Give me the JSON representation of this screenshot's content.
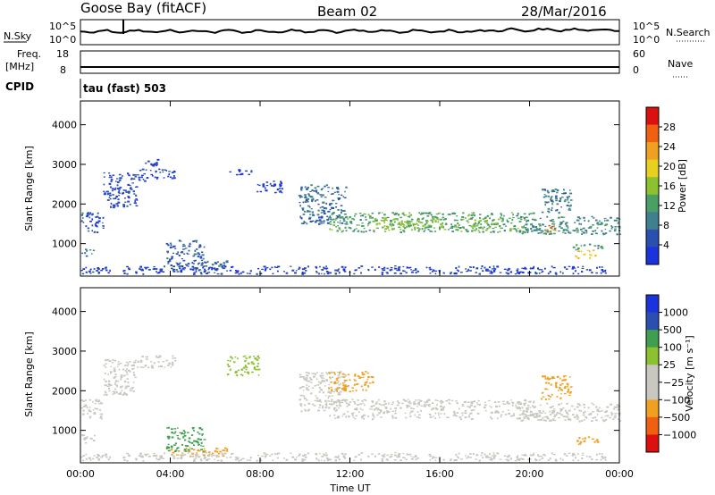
{
  "header": {
    "station": "Goose Bay (fitACF)",
    "beam": "Beam 02",
    "date": "28/Mar/2016"
  },
  "strip_noise": {
    "left_label": "N.Sky",
    "right_label": "N.Search",
    "left_ticks": [
      "10^5",
      "10^0"
    ],
    "right_ticks": [
      "10^5",
      "10^0"
    ]
  },
  "strip_freq": {
    "left_label_1": "Freq.",
    "left_label_2": "[MHz]",
    "right_label": "Nave",
    "left_ticks": [
      "18",
      "8"
    ],
    "right_ticks": [
      "60",
      "0"
    ]
  },
  "cpid": {
    "label": "CPID",
    "value": "tau (fast) 503"
  },
  "colors": {
    "power": [
      "#1a33dd",
      "#2a4fb0",
      "#3f7f8f",
      "#4aa064",
      "#8cc230",
      "#e8d020",
      "#f0a020",
      "#f06010",
      "#dd1010"
    ],
    "velocity": [
      "#dd1010",
      "#f06010",
      "#f0a020",
      "#c8c8c0",
      "#c8c8c0",
      "#8cc230",
      "#3f9f50",
      "#2a4fb0",
      "#1a33dd"
    ]
  },
  "chart_data": [
    {
      "type": "heatmap",
      "parameter": "power",
      "xlabel": "",
      "ylabel": "Slant Range [km]",
      "x_ticks": [
        "00:00",
        "04:00",
        "08:00",
        "12:00",
        "16:00",
        "20:00",
        "00:00"
      ],
      "x_range_hours": [
        0,
        24
      ],
      "y_ticks": [
        1000,
        2000,
        3000,
        4000
      ],
      "ylim": [
        180,
        4600
      ],
      "colorbar_label": "Power [dB]",
      "colorbar_ticks": [
        "4",
        "8",
        "12",
        "16",
        "20",
        "24",
        "28"
      ],
      "regions": [
        {
          "t": [
            0.0,
            1.0
          ],
          "r": [
            1300,
            1800
          ],
          "v": 6
        },
        {
          "t": [
            1.0,
            2.5
          ],
          "r": [
            1900,
            2800
          ],
          "v": 5
        },
        {
          "t": [
            2.5,
            4.2
          ],
          "r": [
            2600,
            2900
          ],
          "v": 4
        },
        {
          "t": [
            2.8,
            3.5
          ],
          "r": [
            2950,
            3150
          ],
          "v": 3
        },
        {
          "t": [
            0.0,
            0.6
          ],
          "r": [
            700,
            900
          ],
          "v": 8
        },
        {
          "t": [
            3.8,
            5.5
          ],
          "r": [
            480,
            1100
          ],
          "v": 7
        },
        {
          "t": [
            4.0,
            6.5
          ],
          "r": [
            350,
            580
          ],
          "v": 8
        },
        {
          "t": [
            6.5,
            7.6
          ],
          "r": [
            2750,
            2900
          ],
          "v": 3
        },
        {
          "t": [
            7.8,
            9.0
          ],
          "r": [
            2300,
            2600
          ],
          "v": 3
        },
        {
          "t": [
            9.7,
            11.8
          ],
          "r": [
            1500,
            2500
          ],
          "v": 9
        },
        {
          "t": [
            11.0,
            20.2
          ],
          "r": [
            1300,
            1800
          ],
          "v": 14
        },
        {
          "t": [
            13.0,
            18.5
          ],
          "r": [
            1350,
            1650
          ],
          "v": 17
        },
        {
          "t": [
            19.5,
            24.0
          ],
          "r": [
            1250,
            1700
          ],
          "v": 11
        },
        {
          "t": [
            20.5,
            21.8
          ],
          "r": [
            1800,
            2400
          ],
          "v": 10
        },
        {
          "t": [
            20.7,
            21.2
          ],
          "r": [
            1300,
            1500
          ],
          "v": 26
        },
        {
          "t": [
            22.0,
            23.0
          ],
          "r": [
            650,
            850
          ],
          "v": 23
        },
        {
          "t": [
            21.8,
            23.2
          ],
          "r": [
            850,
            1000
          ],
          "v": 13
        },
        {
          "t": [
            0.0,
            23.5
          ],
          "r": [
            250,
            450
          ],
          "v": 4
        }
      ]
    },
    {
      "type": "heatmap",
      "parameter": "velocity",
      "xlabel": "Time UT",
      "ylabel": "Slant Range [km]",
      "x_ticks": [
        "00:00",
        "04:00",
        "08:00",
        "12:00",
        "16:00",
        "20:00",
        "00:00"
      ],
      "x_range_hours": [
        0,
        24
      ],
      "y_ticks": [
        1000,
        2000,
        3000,
        4000
      ],
      "ylim": [
        180,
        4600
      ],
      "colorbar_label": "Velocity [m s⁻¹]",
      "colorbar_ticks": [
        "1000",
        "500",
        "100",
        "25",
        "−25",
        "−100",
        "−500",
        "−1000"
      ],
      "regions": [
        {
          "t": [
            0.0,
            1.0
          ],
          "r": [
            1300,
            1800
          ],
          "v": 0
        },
        {
          "t": [
            1.0,
            2.5
          ],
          "r": [
            1900,
            2800
          ],
          "v": 0
        },
        {
          "t": [
            2.5,
            4.2
          ],
          "r": [
            2600,
            2900
          ],
          "v": 0
        },
        {
          "t": [
            0.0,
            0.6
          ],
          "r": [
            700,
            900
          ],
          "v": 0
        },
        {
          "t": [
            3.8,
            5.5
          ],
          "r": [
            480,
            1100
          ],
          "v": 150
        },
        {
          "t": [
            4.0,
            6.5
          ],
          "r": [
            350,
            580
          ],
          "v": -150
        },
        {
          "t": [
            6.5,
            8.0
          ],
          "r": [
            2400,
            2900
          ],
          "v": 80
        },
        {
          "t": [
            9.7,
            11.8
          ],
          "r": [
            1500,
            2500
          ],
          "v": 0
        },
        {
          "t": [
            11.0,
            13.0
          ],
          "r": [
            2000,
            2500
          ],
          "v": -200
        },
        {
          "t": [
            11.0,
            20.2
          ],
          "r": [
            1300,
            1800
          ],
          "v": 0
        },
        {
          "t": [
            19.5,
            24.0
          ],
          "r": [
            1250,
            1700
          ],
          "v": 0
        },
        {
          "t": [
            20.5,
            21.8
          ],
          "r": [
            1800,
            2400
          ],
          "v": -120
        },
        {
          "t": [
            22.0,
            23.0
          ],
          "r": [
            650,
            850
          ],
          "v": -300
        },
        {
          "t": [
            0.0,
            23.5
          ],
          "r": [
            250,
            450
          ],
          "v": -60
        }
      ]
    }
  ]
}
